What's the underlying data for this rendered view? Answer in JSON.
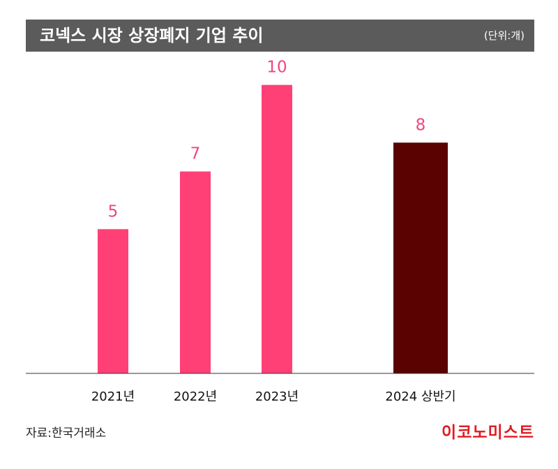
{
  "header": {
    "title": "코넥스 시장 상장폐지 기업 추이",
    "unit": "(단위:개)"
  },
  "footer": {
    "source": "자료:한국거래소",
    "brand": "이코노미스트"
  },
  "colors": {
    "title_bg": "#5b5b5b",
    "bar_primary": "#ff4077",
    "bar_highlight": "#5a0202",
    "value_label": "#f0467d",
    "brand": "#e01b22"
  },
  "chart_data": {
    "type": "bar",
    "title": "코넥스 시장 상장폐지 기업 추이",
    "unit": "(단위:개)",
    "categories": [
      "2021년",
      "2022년",
      "2023년",
      "2024 상반기"
    ],
    "values": [
      5,
      7,
      10,
      8
    ],
    "value_labels": [
      "5",
      "7",
      "10",
      "8"
    ],
    "highlight_index": 3,
    "ylim": [
      0,
      11.25
    ],
    "grid": false,
    "legend": "none"
  }
}
